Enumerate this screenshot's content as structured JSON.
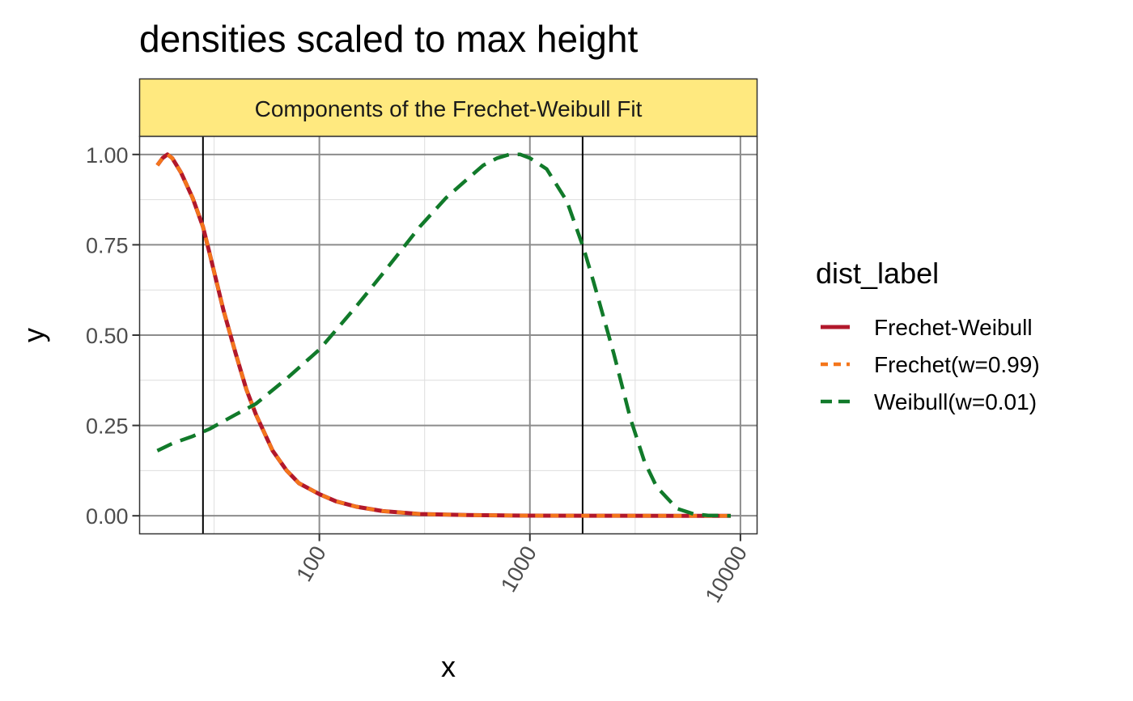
{
  "chart_data": {
    "type": "line",
    "title": "densities scaled to max height",
    "facet_label": "Components of the Frechet-Weibull Fit",
    "xlabel": "x",
    "ylabel": "y",
    "x_scale": "log10",
    "xlim": [
      14,
      12000
    ],
    "ylim": [
      -0.05,
      1.05
    ],
    "x_ticks": [
      100,
      1000,
      10000
    ],
    "x_tick_labels": [
      "100",
      "1000",
      "10000"
    ],
    "y_ticks": [
      0,
      0.25,
      0.5,
      0.75,
      1.0
    ],
    "y_tick_labels": [
      "0.00",
      "0.25",
      "0.50",
      "0.75",
      "1.00"
    ],
    "vlines": [
      28,
      1780
    ],
    "legend": {
      "title": "dist_label",
      "placement": "right"
    },
    "series": [
      {
        "name": "Frechet-Weibull",
        "color": "#b2182b",
        "dash": "solid",
        "x": [
          17,
          18,
          19,
          20,
          22,
          25,
          28,
          30,
          35,
          40,
          45,
          50,
          60,
          70,
          80,
          100,
          120,
          150,
          200,
          300,
          500,
          1000,
          2000,
          5000,
          9000
        ],
        "y": [
          0.97,
          0.99,
          1.0,
          0.99,
          0.95,
          0.88,
          0.8,
          0.73,
          0.57,
          0.45,
          0.35,
          0.28,
          0.18,
          0.125,
          0.09,
          0.06,
          0.04,
          0.025,
          0.013,
          0.005,
          0.002,
          0.0005,
          0.0001,
          0.0,
          0.0
        ]
      },
      {
        "name": "Frechet(w=0.99)",
        "color": "#f4761b",
        "dash": "short-dash",
        "x": [
          17,
          18,
          19,
          20,
          22,
          25,
          28,
          30,
          35,
          40,
          45,
          50,
          60,
          70,
          80,
          100,
          120,
          150,
          200,
          300,
          500,
          1000,
          2000,
          5000,
          9000
        ],
        "y": [
          0.97,
          0.99,
          1.0,
          0.99,
          0.95,
          0.88,
          0.8,
          0.73,
          0.57,
          0.45,
          0.35,
          0.28,
          0.18,
          0.125,
          0.09,
          0.06,
          0.04,
          0.025,
          0.013,
          0.005,
          0.002,
          0.0005,
          0.0001,
          0.0,
          0.0
        ]
      },
      {
        "name": "Weibull(w=0.01)",
        "color": "#117a2a",
        "dash": "long-dash",
        "x": [
          17,
          20,
          25,
          30,
          40,
          50,
          70,
          100,
          150,
          200,
          300,
          400,
          500,
          600,
          700,
          800,
          900,
          1000,
          1200,
          1500,
          1800,
          2000,
          2500,
          3000,
          3500,
          4000,
          5000,
          6000,
          7000,
          9000
        ],
        "y": [
          0.18,
          0.2,
          0.22,
          0.24,
          0.28,
          0.31,
          0.38,
          0.46,
          0.58,
          0.67,
          0.8,
          0.88,
          0.93,
          0.97,
          0.99,
          1.0,
          1.0,
          0.99,
          0.96,
          0.87,
          0.74,
          0.65,
          0.45,
          0.27,
          0.15,
          0.08,
          0.02,
          0.005,
          0.001,
          0.0
        ]
      }
    ]
  }
}
